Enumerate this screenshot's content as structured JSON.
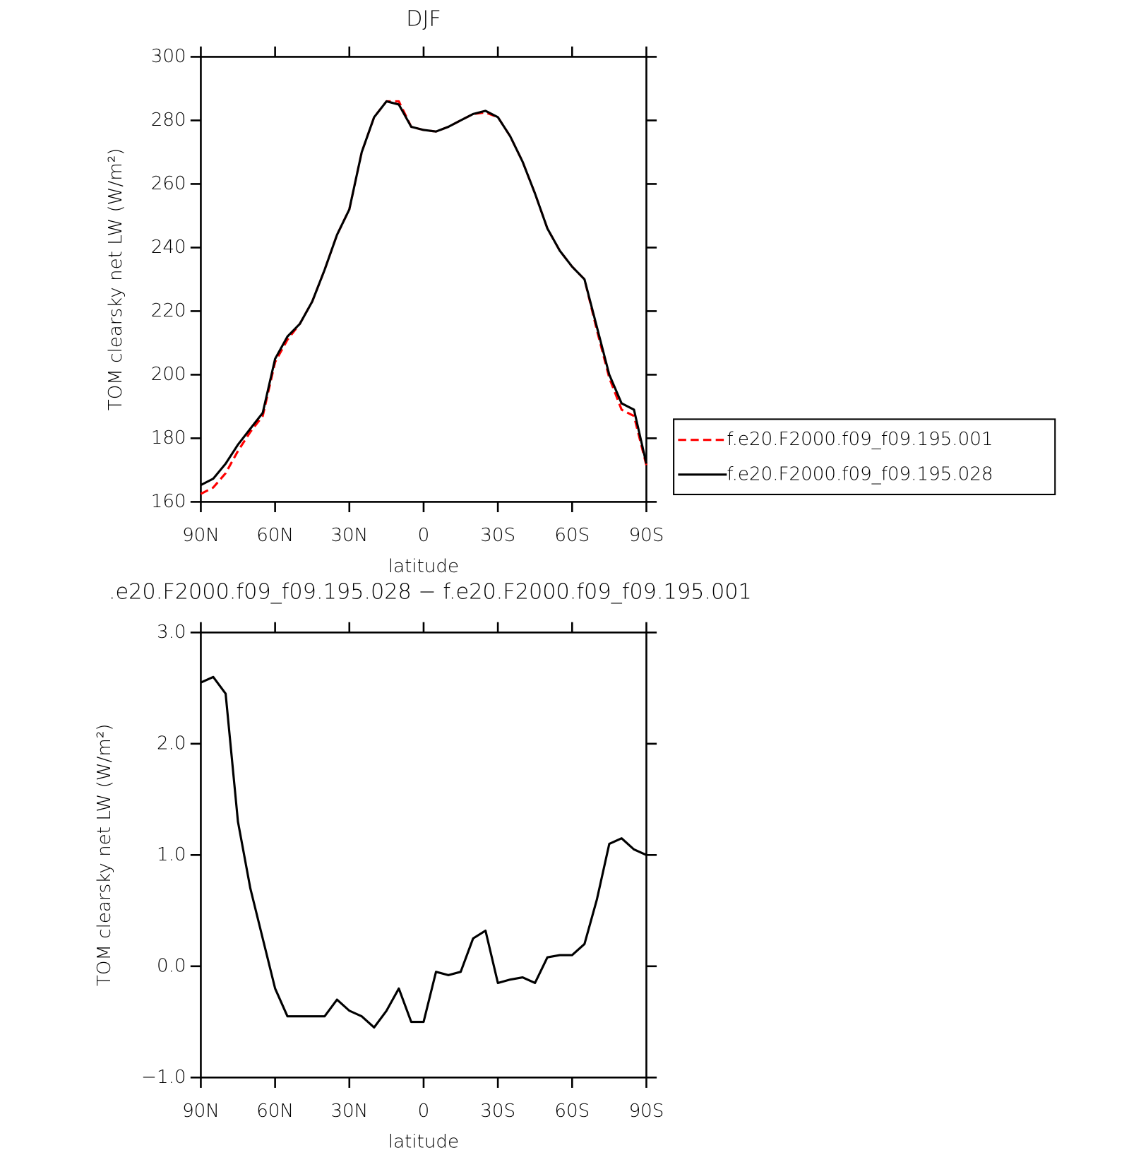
{
  "chart_data": [
    {
      "type": "line",
      "title": "DJF",
      "xlabel": "latitude",
      "ylabel": "TOM clearsky net LW (W/m²)",
      "x": [
        90,
        85,
        80,
        75,
        70,
        65,
        60,
        55,
        50,
        45,
        40,
        35,
        30,
        25,
        20,
        15,
        10,
        5,
        0,
        -5,
        -10,
        -15,
        -20,
        -25,
        -30,
        -35,
        -40,
        -45,
        -50,
        -55,
        -60,
        -65,
        -70,
        -75,
        -80,
        -85,
        -90
      ],
      "series": [
        {
          "name": "f.e20.F2000.f09_f09.195.001",
          "color": "#ff0000",
          "dash": true,
          "values": [
            162.5,
            164.5,
            169,
            176,
            182,
            187,
            204,
            211,
            216,
            223,
            233,
            244,
            252,
            270,
            281,
            286,
            286,
            278,
            277,
            276.5,
            278,
            280,
            282,
            282.5,
            281,
            275,
            267,
            257,
            246,
            239,
            234,
            230,
            214,
            199,
            189,
            187,
            171.5
          ]
        },
        {
          "name": "f.e20.F2000.f09_f09.195.028",
          "color": "#000000",
          "dash": false,
          "values": [
            165.3,
            167.3,
            172,
            178,
            183,
            188,
            205,
            212,
            216,
            223,
            233,
            244,
            252,
            270,
            281,
            286,
            285,
            278,
            277,
            276.5,
            278,
            280,
            282,
            283,
            281,
            275,
            267,
            257,
            246,
            239,
            234,
            230,
            215,
            200,
            191,
            189,
            172
          ]
        }
      ],
      "xlim": [
        90,
        -90
      ],
      "xticks": [
        {
          "value": 90,
          "label": "90N"
        },
        {
          "value": 60,
          "label": "60N"
        },
        {
          "value": 30,
          "label": "30N"
        },
        0,
        {
          "value": -30,
          "label": "30S"
        },
        {
          "value": -60,
          "label": "60S"
        },
        {
          "value": -90,
          "label": "90S"
        }
      ],
      "ylim": [
        160,
        300
      ],
      "yticks": [
        160,
        180,
        200,
        220,
        240,
        260,
        280,
        300
      ],
      "legend": "right"
    },
    {
      "type": "line",
      "title": ".e20.F2000.f09_f09.195.028 − f.e20.F2000.f09_f09.195.001",
      "xlabel": "latitude",
      "ylabel": "TOM clearsky net LW (W/m²)",
      "x": [
        90,
        85,
        80,
        75,
        70,
        65,
        60,
        55,
        50,
        45,
        40,
        35,
        30,
        25,
        20,
        15,
        10,
        5,
        0,
        -5,
        -10,
        -15,
        -20,
        -25,
        -30,
        -35,
        -40,
        -45,
        -50,
        -55,
        -60,
        -65,
        -70,
        -75,
        -80,
        -85,
        -90
      ],
      "series": [
        {
          "color": "#000000",
          "dash": false,
          "values": [
            2.55,
            2.6,
            2.45,
            1.3,
            0.7,
            0.25,
            -0.2,
            -0.45,
            -0.45,
            -0.45,
            -0.45,
            -0.3,
            -0.4,
            -0.45,
            -0.55,
            -0.4,
            -0.2,
            -0.5,
            -0.5,
            -0.05,
            -0.08,
            -0.05,
            0.25,
            0.32,
            -0.15,
            -0.12,
            -0.1,
            -0.15,
            0.08,
            0.1,
            0.1,
            0.2,
            0.6,
            1.1,
            1.15,
            1.05,
            1.0
          ]
        }
      ],
      "xlim": [
        90,
        -90
      ],
      "xticks": [
        {
          "value": 90,
          "label": "90N"
        },
        {
          "value": 60,
          "label": "60N"
        },
        {
          "value": 30,
          "label": "30N"
        },
        0,
        {
          "value": -30,
          "label": "30S"
        },
        {
          "value": -60,
          "label": "60S"
        },
        {
          "value": -90,
          "label": "90S"
        }
      ],
      "ylim": [
        -1,
        3
      ],
      "yticks": [
        {
          "value": -1,
          "label": "−1.0"
        },
        {
          "value": 0,
          "label": "0.0"
        },
        {
          "value": 1,
          "label": "1.0"
        },
        {
          "value": 2,
          "label": "2.0"
        },
        {
          "value": 3,
          "label": "3.0"
        }
      ]
    }
  ]
}
